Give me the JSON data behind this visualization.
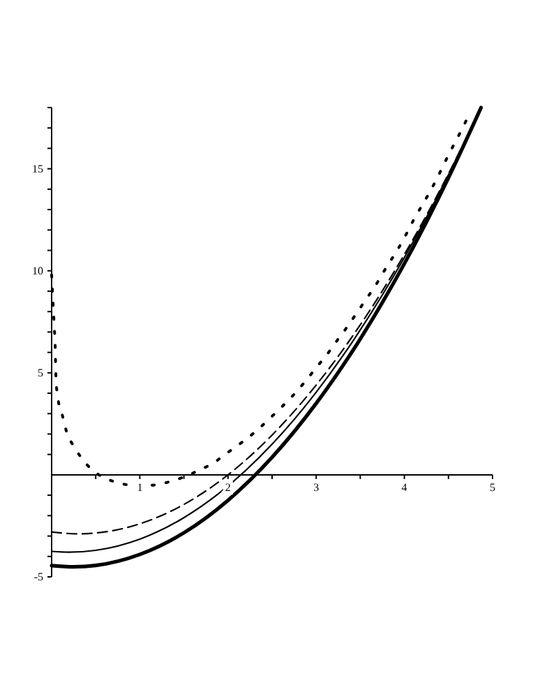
{
  "chart_data": {
    "type": "line",
    "xlim": [
      0,
      5
    ],
    "ylim": [
      -5,
      18
    ],
    "xticks": [
      {
        "value": 0.5,
        "label": null
      },
      1,
      {
        "value": 1.5,
        "label": null
      },
      2,
      {
        "value": 2.5,
        "label": null
      },
      3,
      {
        "value": 3.5,
        "label": null
      },
      4,
      {
        "value": 4.5,
        "label": null
      },
      5
    ],
    "yticks": [
      -5,
      {
        "value": -4,
        "label": null
      },
      {
        "value": -3,
        "label": null
      },
      {
        "value": -2,
        "label": null
      },
      {
        "value": -1,
        "label": null
      },
      {
        "value": 1,
        "label": null
      },
      {
        "value": 2,
        "label": null
      },
      {
        "value": 3,
        "label": null
      },
      {
        "value": 4,
        "label": null
      },
      5,
      {
        "value": 6,
        "label": null
      },
      {
        "value": 7,
        "label": null
      },
      {
        "value": 8,
        "label": null
      },
      {
        "value": 9,
        "label": null
      },
      10,
      {
        "value": 11,
        "label": null
      },
      {
        "value": 12,
        "label": null
      },
      {
        "value": 13,
        "label": null
      },
      {
        "value": 14,
        "label": null
      },
      15,
      {
        "value": 16,
        "label": null
      },
      {
        "value": 17,
        "label": null
      },
      {
        "value": 18,
        "label": null
      }
    ],
    "grid": false,
    "marker": "none",
    "series": [
      {
        "color": "#000000",
        "line_style": "dotted",
        "x": [
          0,
          0.01,
          0.02,
          0.03,
          0.04,
          0.05,
          0.07,
          0.12,
          0.17,
          0.26,
          0.37,
          0.52,
          0.7,
          0.9,
          1.09,
          1.29,
          1.66,
          1.84,
          2.0,
          2.16,
          2.32,
          2.47,
          2.61,
          2.75,
          2.88,
          3.0,
          3.13,
          3.24,
          3.36,
          3.47,
          3.59,
          3.7,
          3.8,
          3.91,
          4.01,
          4.1,
          4.2,
          4.3,
          4.39,
          4.48,
          4.57,
          4.66,
          4.75
        ],
        "values": [
          9.8,
          8.97,
          8.1,
          7.25,
          6.37,
          4.65,
          3.8,
          2.95,
          2.1,
          1.35,
          0.65,
          0.05,
          -0.32,
          -0.5,
          -0.52,
          -0.39,
          0.2,
          0.6,
          1.1,
          1.6,
          2.15,
          2.75,
          3.33,
          3.95,
          4.6,
          5.25,
          5.94,
          6.6,
          7.3,
          8.0,
          8.75,
          9.47,
          10.2,
          10.94,
          11.7,
          12.45,
          13.2,
          13.95,
          14.7,
          15.5,
          16.25,
          17.0,
          17.8
        ]
      },
      {
        "color": "#000000",
        "line_style": "dashed",
        "x": [
          0,
          0.3,
          0.5,
          1,
          1.5,
          2,
          2.5,
          3,
          3.5,
          4,
          4.5,
          4.87
        ],
        "values": [
          -2.8,
          -2.89,
          -2.85,
          -2.4,
          -1.45,
          0,
          1.95,
          4.4,
          7.35,
          10.8,
          14.75,
          18.0
        ]
      },
      {
        "color": "#000000",
        "line_style": "solid",
        "x": [
          0,
          0.2,
          0.5,
          1,
          1.5,
          1.9,
          2.5,
          3,
          3.5,
          4,
          4.5,
          4.86
        ],
        "values": [
          -3.75,
          -3.79,
          -3.7,
          -3.15,
          -2.1,
          -0.9,
          1.5,
          4.05,
          7.1,
          10.65,
          14.7,
          17.9
        ]
      },
      {
        "color": "#000000",
        "line_style": "solid",
        "x": [
          0,
          0.25,
          0.5,
          1,
          1.5,
          2,
          2.5,
          3,
          3.5,
          4,
          4.5,
          4.87
        ],
        "values": [
          -4.45,
          -4.51,
          -4.44,
          -3.9,
          -2.84,
          -1.25,
          0.86,
          3.5,
          6.66,
          10.35,
          14.56,
          18.0
        ]
      }
    ]
  }
}
